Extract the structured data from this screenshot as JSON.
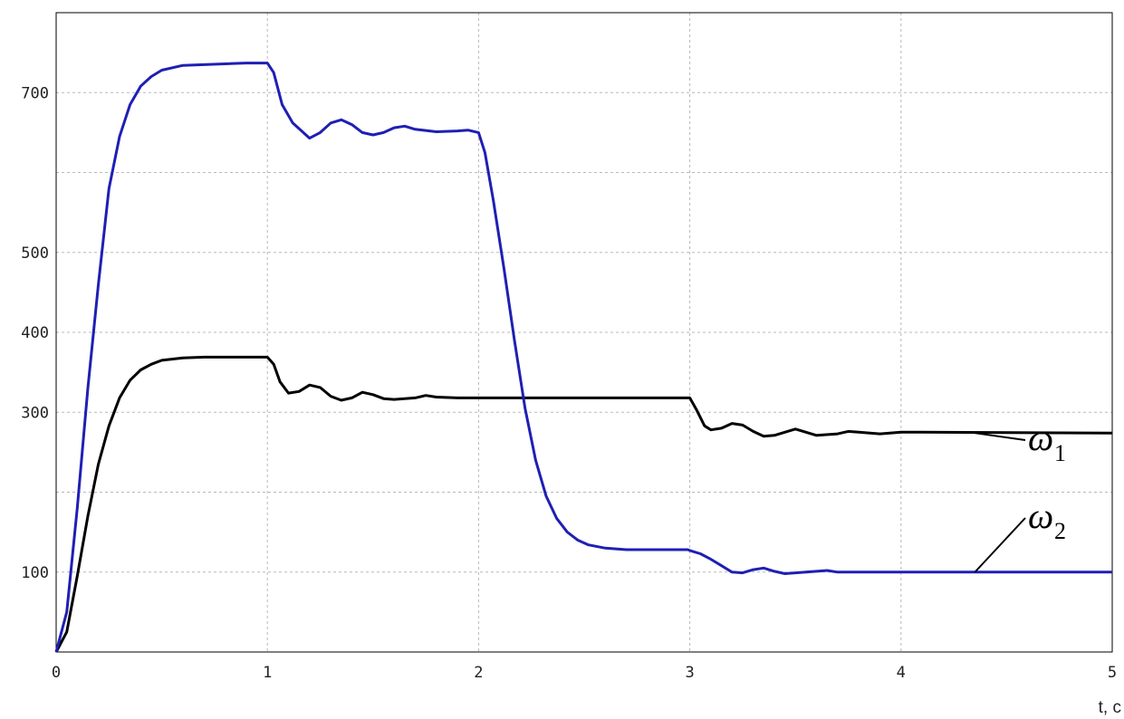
{
  "chart_data": {
    "type": "line",
    "xlabel": "t, c",
    "ylabel": "",
    "title": "",
    "xlim": [
      0,
      5
    ],
    "ylim": [
      0,
      800
    ],
    "x_ticks": [
      0,
      1,
      2,
      3,
      4,
      5
    ],
    "x_tick_labels": [
      "0",
      "1",
      "2",
      "3",
      "4",
      "5"
    ],
    "y_ticks": [
      100,
      300,
      400,
      500,
      700
    ],
    "y_tick_labels": [
      "100",
      "300",
      "400",
      "500",
      "700"
    ],
    "y_gridlines": [
      100,
      200,
      300,
      400,
      500,
      600,
      700
    ],
    "grid": true,
    "series": [
      {
        "name": "ω1",
        "label_main": "ω",
        "label_sub": "1",
        "color": "#000000",
        "points": [
          [
            0,
            0
          ],
          [
            0.05,
            25
          ],
          [
            0.1,
            95
          ],
          [
            0.15,
            170
          ],
          [
            0.2,
            235
          ],
          [
            0.25,
            283
          ],
          [
            0.3,
            318
          ],
          [
            0.35,
            340
          ],
          [
            0.4,
            353
          ],
          [
            0.45,
            360
          ],
          [
            0.5,
            365
          ],
          [
            0.6,
            368
          ],
          [
            0.7,
            369
          ],
          [
            0.8,
            369
          ],
          [
            0.9,
            369
          ],
          [
            0.99,
            369
          ],
          [
            1.0,
            369
          ],
          [
            1.03,
            360
          ],
          [
            1.06,
            338
          ],
          [
            1.1,
            324
          ],
          [
            1.15,
            326
          ],
          [
            1.2,
            334
          ],
          [
            1.25,
            331
          ],
          [
            1.3,
            320
          ],
          [
            1.35,
            315
          ],
          [
            1.4,
            318
          ],
          [
            1.45,
            325
          ],
          [
            1.5,
            322
          ],
          [
            1.55,
            317
          ],
          [
            1.6,
            316
          ],
          [
            1.7,
            318
          ],
          [
            1.75,
            321
          ],
          [
            1.8,
            319
          ],
          [
            1.9,
            318
          ],
          [
            2.0,
            318
          ],
          [
            2.5,
            318
          ],
          [
            2.99,
            318
          ],
          [
            3.0,
            318
          ],
          [
            3.03,
            304
          ],
          [
            3.07,
            283
          ],
          [
            3.1,
            278
          ],
          [
            3.15,
            280
          ],
          [
            3.2,
            286
          ],
          [
            3.25,
            284
          ],
          [
            3.3,
            276
          ],
          [
            3.35,
            270
          ],
          [
            3.4,
            271
          ],
          [
            3.5,
            279
          ],
          [
            3.55,
            275
          ],
          [
            3.6,
            271
          ],
          [
            3.7,
            273
          ],
          [
            3.75,
            276
          ],
          [
            3.8,
            275
          ],
          [
            3.9,
            273
          ],
          [
            4.0,
            275
          ],
          [
            4.1,
            275
          ],
          [
            5.0,
            274
          ]
        ]
      },
      {
        "name": "ω2",
        "label_main": "ω",
        "label_sub": "2",
        "color": "#1f1fb4",
        "points": [
          [
            0,
            0
          ],
          [
            0.05,
            50
          ],
          [
            0.1,
            180
          ],
          [
            0.15,
            330
          ],
          [
            0.2,
            460
          ],
          [
            0.25,
            580
          ],
          [
            0.3,
            645
          ],
          [
            0.35,
            685
          ],
          [
            0.4,
            708
          ],
          [
            0.45,
            720
          ],
          [
            0.5,
            728
          ],
          [
            0.6,
            734
          ],
          [
            0.7,
            735
          ],
          [
            0.8,
            736
          ],
          [
            0.9,
            737
          ],
          [
            0.99,
            737
          ],
          [
            1.0,
            737
          ],
          [
            1.03,
            725
          ],
          [
            1.07,
            685
          ],
          [
            1.12,
            662
          ],
          [
            1.2,
            643
          ],
          [
            1.25,
            650
          ],
          [
            1.3,
            662
          ],
          [
            1.35,
            666
          ],
          [
            1.4,
            660
          ],
          [
            1.45,
            650
          ],
          [
            1.5,
            647
          ],
          [
            1.55,
            650
          ],
          [
            1.6,
            656
          ],
          [
            1.65,
            658
          ],
          [
            1.7,
            654
          ],
          [
            1.8,
            651
          ],
          [
            1.9,
            652
          ],
          [
            1.95,
            653
          ],
          [
            2.0,
            650
          ],
          [
            2.03,
            625
          ],
          [
            2.07,
            565
          ],
          [
            2.12,
            480
          ],
          [
            2.17,
            390
          ],
          [
            2.22,
            305
          ],
          [
            2.27,
            240
          ],
          [
            2.32,
            195
          ],
          [
            2.37,
            167
          ],
          [
            2.42,
            150
          ],
          [
            2.47,
            140
          ],
          [
            2.52,
            134
          ],
          [
            2.6,
            130
          ],
          [
            2.7,
            128
          ],
          [
            2.8,
            128
          ],
          [
            2.9,
            128
          ],
          [
            2.99,
            128
          ],
          [
            3.0,
            127
          ],
          [
            3.05,
            123
          ],
          [
            3.1,
            116
          ],
          [
            3.15,
            108
          ],
          [
            3.2,
            100
          ],
          [
            3.25,
            99
          ],
          [
            3.3,
            103
          ],
          [
            3.35,
            105
          ],
          [
            3.4,
            101
          ],
          [
            3.45,
            98
          ],
          [
            3.5,
            99
          ],
          [
            3.6,
            101
          ],
          [
            3.65,
            102
          ],
          [
            3.7,
            100
          ],
          [
            5.0,
            100
          ]
        ]
      }
    ]
  }
}
